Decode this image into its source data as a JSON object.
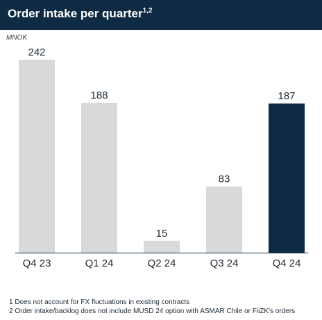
{
  "header": {
    "title": "Order intake per quarter",
    "superscript": "1,2"
  },
  "unit": "MNOK",
  "colors": {
    "header_bg": "#0f2b44",
    "bar_default": "#d9d9d9",
    "bar_highlight": "#0f2b44",
    "baseline": "#0f2b44",
    "label_text": "#1e2a36"
  },
  "chart_data": {
    "type": "bar",
    "title": "Order intake per quarter",
    "ylabel": "MNOK",
    "xlabel": "",
    "categories": [
      "Q4 23",
      "Q1 24",
      "Q2 24",
      "Q3 24",
      "Q4 24"
    ],
    "values": [
      242,
      188,
      15,
      83,
      187
    ],
    "data_labels": [
      "242",
      "188",
      "15",
      "83",
      "187"
    ],
    "highlight_index": 4,
    "ylim": [
      0,
      242
    ],
    "grid": false,
    "legend": "none"
  },
  "footnotes": [
    "1 Does not account for FX fluctuations in existing contracts",
    "2 Order intake/backlog does not include MUSD 24 option with ASMAR Chile or FiiZK's orders"
  ]
}
